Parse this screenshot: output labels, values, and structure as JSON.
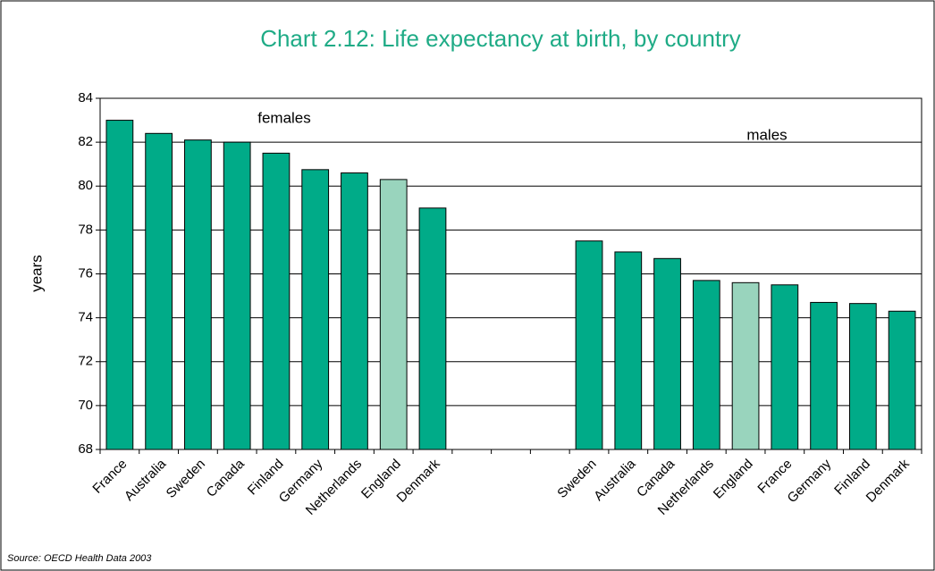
{
  "chart_data": {
    "type": "bar",
    "title": "Chart 2.12: Life expectancy at birth, by country",
    "ylabel": "years",
    "annotations": [
      "females",
      "males"
    ],
    "source": "Source: OECD Health Data 2003",
    "categories": [
      "France",
      "Australia",
      "Sweden",
      "Canada",
      "Finland",
      "Germany",
      "Netherlands",
      "England",
      "Denmark",
      null,
      null,
      null,
      "Sweden",
      "Australia",
      "Canada",
      "Netherlands",
      "England",
      "France",
      "Germany",
      "Finland",
      "Denmark"
    ],
    "values": [
      83,
      82.4,
      82.1,
      82,
      81.5,
      80.75,
      80.6,
      80.3,
      79,
      null,
      null,
      null,
      77.5,
      77,
      76.7,
      75.7,
      75.6,
      75.5,
      74.7,
      74.65,
      74.3
    ],
    "colors": [
      "#00ab88",
      "#00ab88",
      "#00ab88",
      "#00ab88",
      "#00ab88",
      "#00ab88",
      "#00ab88",
      "#99d4bd",
      "#00ab88",
      null,
      null,
      null,
      "#00ab88",
      "#00ab88",
      "#00ab88",
      "#00ab88",
      "#99d4bd",
      "#00ab88",
      "#00ab88",
      "#00ab88",
      "#00ab88"
    ],
    "ylim": [
      68,
      84
    ],
    "yticks": [
      68,
      70,
      72,
      74,
      76,
      78,
      80,
      82,
      84
    ],
    "grid": true
  }
}
